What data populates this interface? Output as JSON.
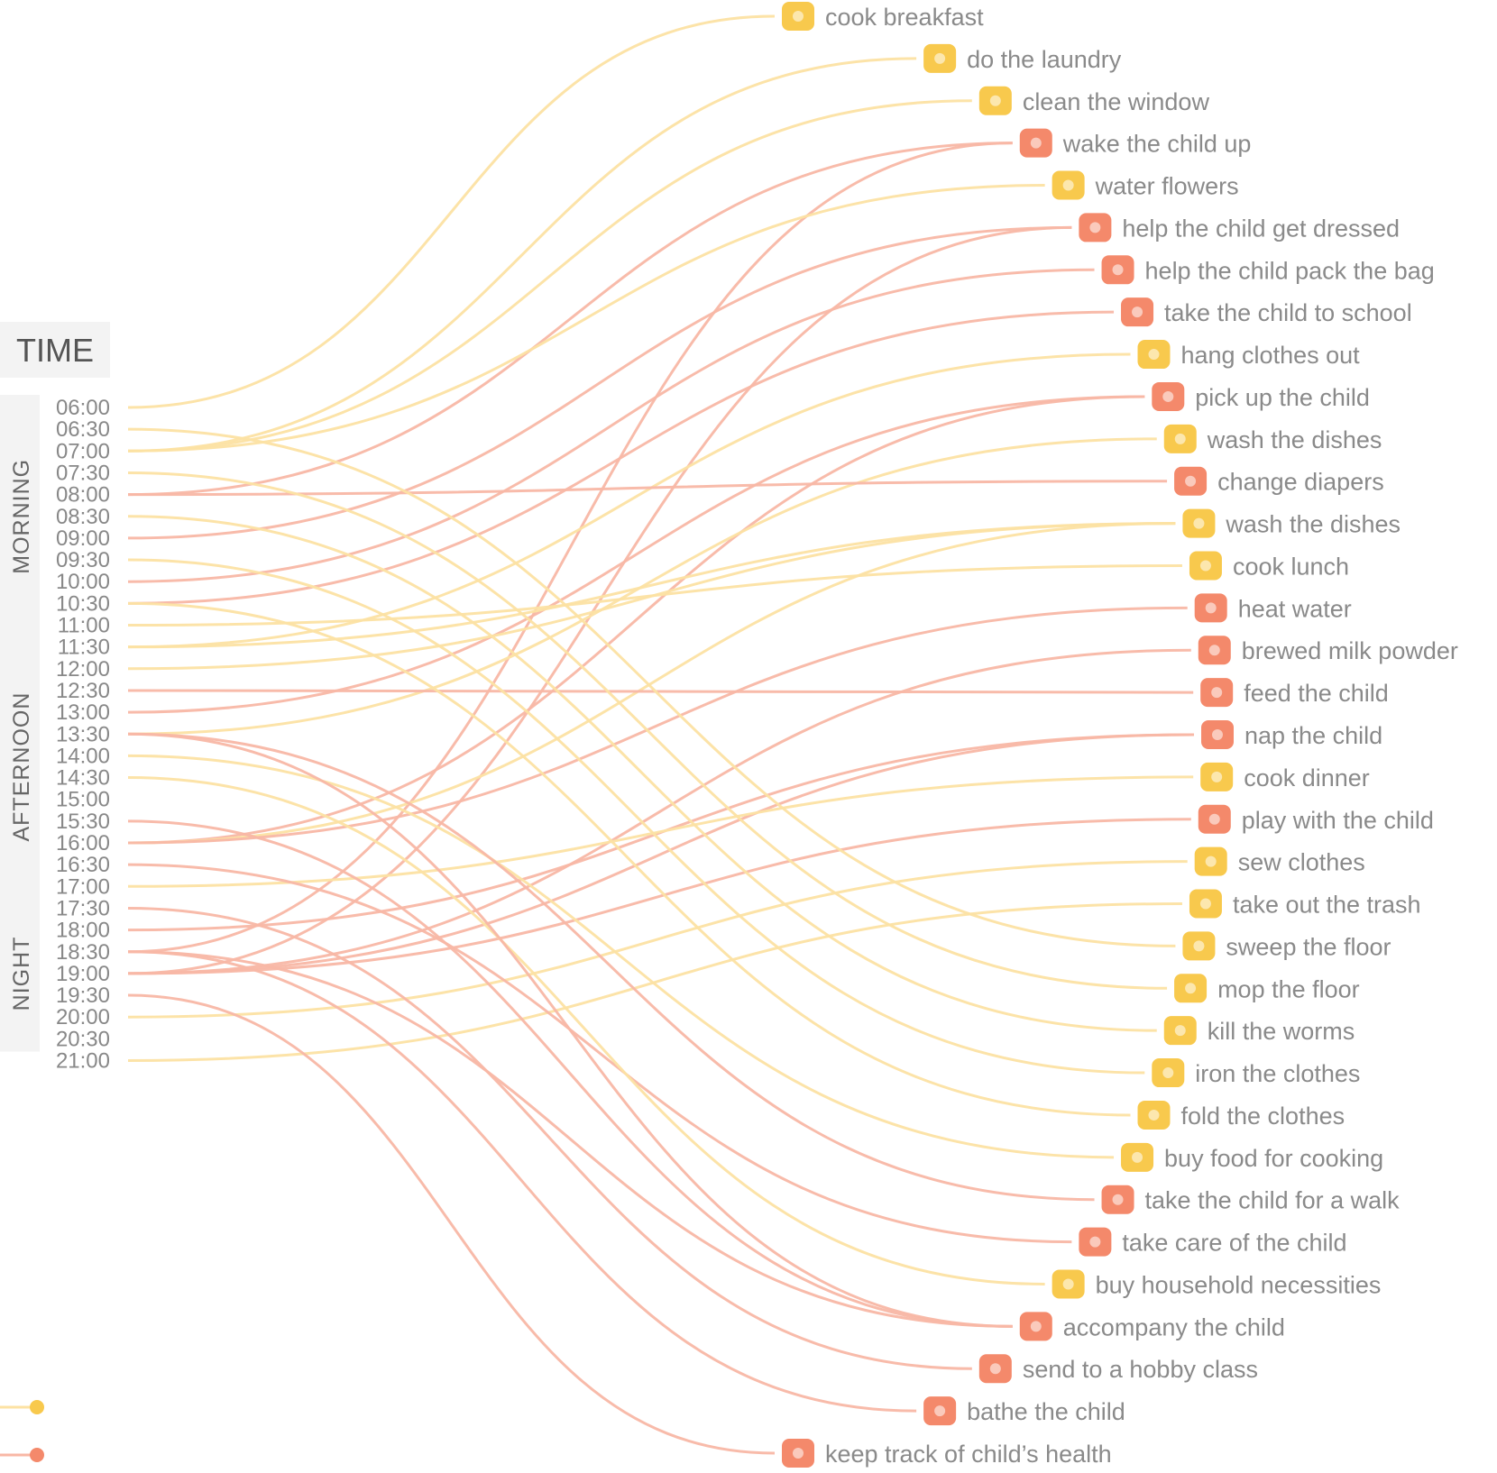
{
  "title": "TIME",
  "periods": [
    {
      "label": "MORNING",
      "from": "06:00",
      "to": "11:30"
    },
    {
      "label": "AFTERNOON",
      "from": "11:30",
      "to": "17:30"
    },
    {
      "label": "NIGHT",
      "from": "17:30",
      "to": "21:00"
    }
  ],
  "times": [
    "06:00",
    "06:30",
    "07:00",
    "07:30",
    "08:00",
    "08:30",
    "09:00",
    "09:30",
    "10:00",
    "10:30",
    "11:00",
    "11:30",
    "12:00",
    "12:30",
    "13:00",
    "13:30",
    "14:00",
    "14:30",
    "15:00",
    "15:30",
    "16:00",
    "16:30",
    "17:00",
    "17:30",
    "18:00",
    "18:30",
    "19:00",
    "19:30",
    "20:00",
    "20:30",
    "21:00"
  ],
  "colors": {
    "housework": "#f8c94d",
    "childcare": "#f4896b",
    "housework_line": "#fce2a3",
    "childcare_line": "#f8b7a5",
    "label_bg": "#f3f3f3"
  },
  "tasks": [
    {
      "label": "cook breakfast",
      "cat": "housework",
      "icon": "chef-hat-icon",
      "times": [
        "06:00"
      ]
    },
    {
      "label": "do the laundry",
      "cat": "housework",
      "icon": "washing-machine-icon",
      "times": [
        "07:00"
      ]
    },
    {
      "label": "clean the window",
      "cat": "housework",
      "icon": "squeegee-icon",
      "times": [
        "07:00"
      ]
    },
    {
      "label": "wake the child up",
      "cat": "childcare",
      "icon": "alarm-clock-icon",
      "times": [
        "08:00",
        "18:30"
      ]
    },
    {
      "label": "water flowers",
      "cat": "housework",
      "icon": "watering-can-icon",
      "times": [
        "07:00"
      ]
    },
    {
      "label": "help the child get dressed",
      "cat": "childcare",
      "icon": "baby-onesie-icon",
      "times": [
        "09:00",
        "19:00"
      ]
    },
    {
      "label": "help the child pack the bag",
      "cat": "childcare",
      "icon": "school-bag-icon",
      "times": [
        "10:00"
      ]
    },
    {
      "label": "take the child to school",
      "cat": "childcare",
      "icon": "school-building-icon",
      "times": [
        "10:30"
      ]
    },
    {
      "label": "hang clothes out",
      "cat": "housework",
      "icon": "hanging-shirt-icon",
      "times": [
        "11:30"
      ]
    },
    {
      "label": "pick up the child",
      "cat": "childcare",
      "icon": "scooter-icon",
      "times": [
        "13:00",
        "16:00"
      ]
    },
    {
      "label": "wash the dishes",
      "cat": "housework",
      "icon": "dish-glove-icon",
      "times": [
        "13:30"
      ]
    },
    {
      "label": "change diapers",
      "cat": "childcare",
      "icon": "diaper-icon",
      "times": [
        "08:00"
      ]
    },
    {
      "label": "wash the dishes",
      "cat": "housework",
      "icon": "detergent-icon",
      "times": [
        "11:30",
        "12:00",
        "16:00"
      ]
    },
    {
      "label": "cook lunch",
      "cat": "housework",
      "icon": "chef-hat-icon",
      "times": [
        "11:00"
      ]
    },
    {
      "label": "heat water",
      "cat": "childcare",
      "icon": "kettle-icon",
      "times": [
        "16:00"
      ]
    },
    {
      "label": "brewed milk powder",
      "cat": "childcare",
      "icon": "baby-bottle-icon",
      "times": [
        "19:00"
      ]
    },
    {
      "label": "feed the child",
      "cat": "childcare",
      "icon": "spoon-fork-icon",
      "times": [
        "12:30"
      ]
    },
    {
      "label": "nap the child",
      "cat": "childcare",
      "icon": "crib-mobile-icon",
      "times": [
        "18:00",
        "19:00"
      ]
    },
    {
      "label": "cook dinner",
      "cat": "housework",
      "icon": "chef-hat-icon",
      "times": [
        "17:00"
      ]
    },
    {
      "label": "play with the child",
      "cat": "childcare",
      "icon": "rocking-horse-icon",
      "times": [
        "19:00"
      ]
    },
    {
      "label": "sew clothes",
      "cat": "housework",
      "icon": "sewing-icon",
      "times": [
        "20:00"
      ]
    },
    {
      "label": "take out the trash",
      "cat": "housework",
      "icon": "trash-bag-icon",
      "times": [
        "21:00"
      ]
    },
    {
      "label": "sweep the floor",
      "cat": "housework",
      "icon": "broom-icon",
      "times": [
        "06:30"
      ]
    },
    {
      "label": "mop the floor",
      "cat": "housework",
      "icon": "mop-icon",
      "times": [
        "07:30"
      ]
    },
    {
      "label": "kill the worms",
      "cat": "housework",
      "icon": "spray-can-icon",
      "times": [
        "08:30"
      ]
    },
    {
      "label": "iron the clothes",
      "cat": "housework",
      "icon": "ironing-board-icon",
      "times": [
        "09:30"
      ]
    },
    {
      "label": "fold the clothes",
      "cat": "housework",
      "icon": "folded-clothes-icon",
      "times": [
        "10:30"
      ]
    },
    {
      "label": "buy food for cooking",
      "cat": "housework",
      "icon": "vegetables-icon",
      "times": [
        "14:00"
      ]
    },
    {
      "label": "take the child for a walk",
      "cat": "childcare",
      "icon": "stroller-icon",
      "times": [
        "13:30"
      ]
    },
    {
      "label": "take care of the child",
      "cat": "childcare",
      "icon": "mother-baby-icon",
      "times": [
        "16:30"
      ]
    },
    {
      "label": "buy household necessities",
      "cat": "housework",
      "icon": "shopping-cart-icon",
      "times": [
        "14:30"
      ]
    },
    {
      "label": "accompany the child",
      "cat": "childcare",
      "icon": "crawling-baby-icon",
      "times": [
        "13:30",
        "15:30",
        "18:30"
      ]
    },
    {
      "label": "send to a hobby class",
      "cat": "childcare",
      "icon": "piano-icon",
      "times": [
        "17:30"
      ]
    },
    {
      "label": "bathe the child",
      "cat": "childcare",
      "icon": "bathtub-icon",
      "times": [
        "18:30"
      ]
    },
    {
      "label": "keep track of child’s health",
      "cat": "childcare",
      "icon": "first-aid-kit-icon",
      "times": [
        "19:30"
      ]
    }
  ]
}
